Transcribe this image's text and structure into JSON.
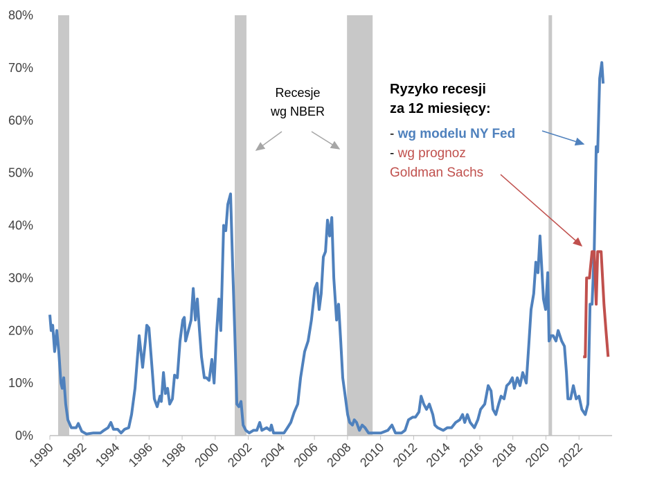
{
  "chart_data": {
    "type": "line",
    "legend_title": [
      "Ryzyko recesji",
      "za 12 miesięcy:"
    ],
    "legend_prefix": "-",
    "recession_label": [
      "Recesje",
      "wg NBER"
    ],
    "recessions": [
      [
        1990.5,
        1991.17
      ],
      [
        2001.18,
        2001.89
      ],
      [
        2007.97,
        2009.52
      ],
      [
        2020.16,
        2020.37
      ]
    ],
    "recession_color": "#c8c8c8",
    "xlim": [
      1990,
      2024
    ],
    "xticks": [
      1990,
      1992,
      1994,
      1996,
      1998,
      2000,
      2002,
      2004,
      2006,
      2008,
      2010,
      2012,
      2014,
      2016,
      2018,
      2020,
      2022
    ],
    "ylim": [
      0,
      80
    ],
    "yticks": [
      {
        "value": 0,
        "label": "0%"
      },
      {
        "value": 10,
        "label": "10%"
      },
      {
        "value": 20,
        "label": "20%"
      },
      {
        "value": 30,
        "label": "30%"
      },
      {
        "value": 40,
        "label": "40%"
      },
      {
        "value": 50,
        "label": "50%"
      },
      {
        "value": 60,
        "label": "60%"
      },
      {
        "value": 70,
        "label": "70%"
      },
      {
        "value": 80,
        "label": "80%"
      }
    ],
    "grid": false,
    "series": [
      {
        "name": "wg modelu NY Fed",
        "color": "#4f81bd",
        "x": [
          1990.0,
          1990.08,
          1990.17,
          1990.29,
          1990.42,
          1990.54,
          1990.67,
          1990.75,
          1990.84,
          1990.96,
          1991.09,
          1991.3,
          1991.59,
          1991.72,
          1991.93,
          1992.22,
          1992.64,
          1993.06,
          1993.27,
          1993.52,
          1993.69,
          1993.85,
          1994.1,
          1994.31,
          1994.52,
          1994.77,
          1994.94,
          1995.15,
          1995.4,
          1995.61,
          1995.78,
          1995.86,
          1995.99,
          1996.2,
          1996.32,
          1996.49,
          1996.66,
          1996.74,
          1996.87,
          1996.99,
          1997.12,
          1997.25,
          1997.41,
          1997.54,
          1997.71,
          1997.87,
          1998.04,
          1998.13,
          1998.21,
          1998.38,
          1998.54,
          1998.67,
          1998.8,
          1998.92,
          1999.05,
          1999.17,
          1999.34,
          1999.47,
          1999.63,
          1999.8,
          1999.93,
          2000.09,
          2000.22,
          2000.34,
          2000.51,
          2000.64,
          2000.76,
          2000.93,
          2001.06,
          2001.18,
          2001.31,
          2001.43,
          2001.56,
          2001.69,
          2001.85,
          2002.06,
          2002.31,
          2002.52,
          2002.69,
          2002.82,
          2003.11,
          2003.32,
          2003.4,
          2003.53,
          2003.82,
          2004.16,
          2004.37,
          2004.57,
          2004.78,
          2004.99,
          2005.16,
          2005.41,
          2005.62,
          2005.82,
          2006.03,
          2006.16,
          2006.29,
          2006.41,
          2006.54,
          2006.67,
          2006.79,
          2006.92,
          2007.05,
          2007.17,
          2007.34,
          2007.46,
          2007.59,
          2007.71,
          2007.84,
          2008.01,
          2008.13,
          2008.3,
          2008.41,
          2008.55,
          2008.72,
          2008.89,
          2009.06,
          2009.27,
          2009.6,
          2010.02,
          2010.44,
          2010.69,
          2010.9,
          2011.27,
          2011.48,
          2011.69,
          2011.94,
          2012.11,
          2012.32,
          2012.45,
          2012.61,
          2012.78,
          2012.95,
          2013.16,
          2013.28,
          2013.45,
          2013.79,
          2014.04,
          2014.29,
          2014.54,
          2014.79,
          2014.96,
          2015.09,
          2015.25,
          2015.42,
          2015.67,
          2015.88,
          2016.05,
          2016.3,
          2016.51,
          2016.68,
          2016.8,
          2016.97,
          2017.14,
          2017.29,
          2017.47,
          2017.63,
          2017.8,
          2017.97,
          2018.09,
          2018.27,
          2018.43,
          2018.6,
          2018.81,
          2018.98,
          2019.1,
          2019.26,
          2019.39,
          2019.52,
          2019.64,
          2019.73,
          2019.85,
          2019.98,
          2020.11,
          2020.19,
          2020.32,
          2020.44,
          2020.61,
          2020.74,
          2020.95,
          2021.12,
          2021.24,
          2021.33,
          2021.49,
          2021.66,
          2021.83,
          2022.0,
          2022.17,
          2022.38,
          2022.54,
          2022.67,
          2022.79,
          2022.92,
          2023.04,
          2023.13,
          2023.25,
          2023.38,
          2023.46
        ],
        "values": [
          23,
          20,
          21,
          16,
          20,
          16,
          10,
          9,
          11,
          6,
          3,
          1.5,
          1.5,
          2.3,
          0.8,
          0.3,
          0.5,
          0.5,
          1,
          1.5,
          2.5,
          1.2,
          1.2,
          0.5,
          1.2,
          1.5,
          4,
          9,
          19,
          13,
          18,
          21,
          20.5,
          12,
          7,
          5.5,
          7.5,
          6.5,
          12,
          8,
          9,
          6,
          7,
          11.5,
          11,
          18,
          22,
          22.5,
          18,
          20,
          22,
          28,
          22,
          26,
          20,
          15,
          11,
          11,
          10.5,
          14.5,
          10,
          20,
          26,
          20,
          40,
          39,
          44,
          46,
          32,
          20,
          6,
          5.5,
          6.5,
          2,
          1,
          0.5,
          1,
          1,
          2.5,
          1,
          1.5,
          1,
          2,
          0.5,
          0.5,
          0.5,
          1.5,
          2.5,
          4.5,
          6,
          11,
          16,
          18,
          22,
          28,
          29,
          24,
          27,
          34,
          35,
          41,
          38,
          41.5,
          30,
          22,
          25,
          18,
          11,
          8,
          4,
          2.5,
          2,
          3,
          2.5,
          1,
          2,
          1.5,
          0.5,
          0.5,
          0.5,
          1,
          2,
          0.5,
          0.5,
          1,
          3,
          3.5,
          3.5,
          4.5,
          7.5,
          6,
          5,
          6,
          4,
          2,
          1.5,
          1,
          1.5,
          1.5,
          2.5,
          3,
          4,
          2.5,
          4,
          2.5,
          1.5,
          3,
          5,
          6,
          9.5,
          8.5,
          5,
          4,
          6,
          7.5,
          7,
          9.5,
          10,
          11,
          9,
          11,
          9.5,
          12,
          10,
          18,
          24,
          27,
          33,
          31,
          38,
          33,
          26,
          24,
          31,
          18,
          19,
          19,
          18,
          20,
          18,
          17,
          12,
          7,
          7,
          9.5,
          7,
          7.5,
          5,
          4,
          6,
          25,
          25,
          35,
          55,
          54,
          68,
          71,
          67
        ]
      },
      {
        "name": "wg prognoz Goldman Sachs",
        "color": "#c0504d",
        "x": [
          2022.25,
          2022.38,
          2022.46,
          2022.63,
          2022.79,
          2022.92,
          2023.04,
          2023.13,
          2023.34,
          2023.51,
          2023.63,
          2023.76
        ],
        "values": [
          15,
          15,
          30,
          30,
          35,
          35,
          25,
          35,
          35,
          25,
          20,
          15
        ]
      }
    ]
  }
}
